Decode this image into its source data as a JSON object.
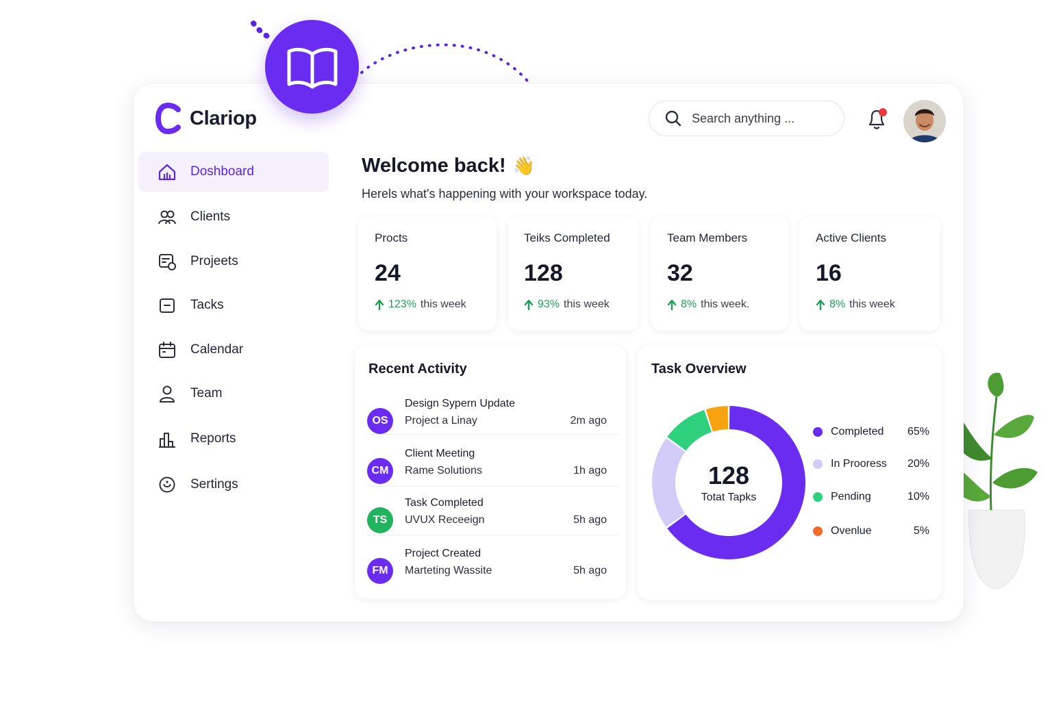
{
  "app": {
    "name": "Clariop"
  },
  "sidebar": {
    "items": [
      {
        "label": "Doshboard",
        "icon": "home-icon",
        "active": true
      },
      {
        "label": "Clients",
        "icon": "users-icon",
        "active": false
      },
      {
        "label": "Projeets",
        "icon": "projects-icon",
        "active": false
      },
      {
        "label": "Tacks",
        "icon": "tasks-icon",
        "active": false
      },
      {
        "label": "Calendar",
        "icon": "calendar-icon",
        "active": false
      },
      {
        "label": "Team",
        "icon": "user-icon",
        "active": false
      },
      {
        "label": "Reports",
        "icon": "reports-icon",
        "active": false
      },
      {
        "label": "Sertings",
        "icon": "settings-icon",
        "active": false
      }
    ]
  },
  "header": {
    "search_placeholder": "Search anything ...",
    "notification_icon": "bell-icon",
    "avatar_icon": "avatar"
  },
  "welcome": {
    "title": "Welcome back!",
    "emoji": "👋",
    "subtitle": "Herels what's happening with your workspace today."
  },
  "stats": [
    {
      "label": "Procts",
      "value": "24",
      "pct": "123%",
      "suffix": "this week"
    },
    {
      "label": "Teiks Completed",
      "value": "128",
      "pct": "93%",
      "suffix": "this week"
    },
    {
      "label": "Team Members",
      "value": "32",
      "pct": "8%",
      "suffix": "this week."
    },
    {
      "label": "Active Clients",
      "value": "16",
      "pct": "8%",
      "suffix": "this week"
    }
  ],
  "activity": {
    "title": "Recent Activity",
    "items": [
      {
        "initials": "OS",
        "title": "Design Sypern Update",
        "sub": "Project  a Linay",
        "time": "2m ago",
        "color": "#6a2cf0"
      },
      {
        "initials": "CM",
        "title": "Client Meeting",
        "sub": "Rame Solutions",
        "time": "1h ago",
        "color": "#6a2cf0"
      },
      {
        "initials": "TS",
        "title": "Task Completed",
        "sub": "UVUX Receeign",
        "time": "5h ago",
        "color": "#22b35e"
      },
      {
        "initials": "FM",
        "title": "Project Created",
        "sub": "Marteting Wassite",
        "time": "5h ago",
        "color": "#6a2cf0"
      }
    ]
  },
  "overview": {
    "title": "Task Overview",
    "center_value": "128",
    "center_label": "Totat Tapks",
    "legend": [
      {
        "label": "Completed",
        "pct": "65%",
        "color": "#6a2cf0"
      },
      {
        "label": "In Prooress",
        "pct": "20%",
        "color": "#d4ccf8"
      },
      {
        "label": "Pending",
        "pct": "10%",
        "color": "#2fd07e"
      },
      {
        "label": "Ovenlue",
        "pct": "5%",
        "color": "#f26a2a"
      }
    ]
  },
  "chart_data": {
    "type": "pie",
    "categories": [
      "Completed",
      "In Prooress",
      "Pending",
      "Ovenlue"
    ],
    "values": [
      65,
      20,
      10,
      5
    ],
    "colors": [
      "#6a2cf0",
      "#d4ccf8",
      "#2fd07e",
      "#f7a20f"
    ]
  }
}
